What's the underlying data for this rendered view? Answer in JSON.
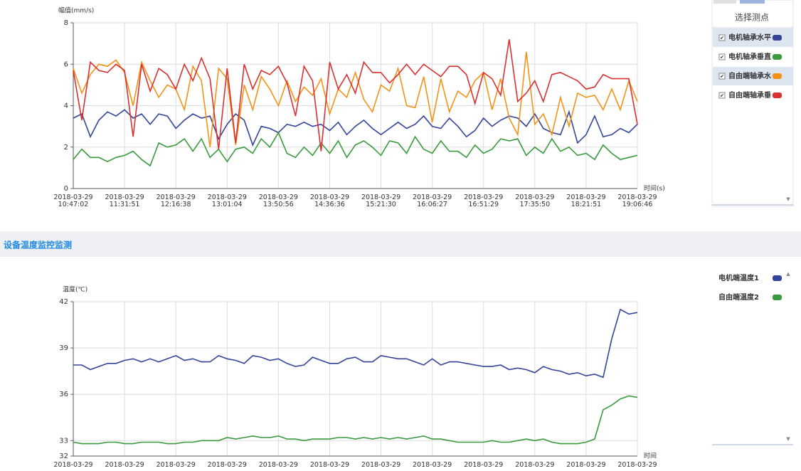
{
  "chart_data": [
    {
      "type": "line",
      "y_label": "幅值(mm/s)",
      "x_label": "时间(s)",
      "legend_title": "选择测点",
      "ylim": [
        0,
        8
      ],
      "yticks": [
        0,
        2,
        4,
        6,
        8
      ],
      "grid": true,
      "categories": [
        "2018-03-29\n10:47:02",
        null,
        null,
        null,
        null,
        null,
        "2018-03-29\n11:31:51",
        null,
        null,
        null,
        null,
        null,
        "2018-03-29\n12:16:38",
        null,
        null,
        null,
        null,
        null,
        "2018-03-29\n13:01:04",
        null,
        null,
        null,
        null,
        null,
        "2018-03-29\n13:50:56",
        null,
        null,
        null,
        null,
        null,
        "2018-03-29\n14:36:36",
        null,
        null,
        null,
        null,
        null,
        "2018-03-29\n15:21:30",
        null,
        null,
        null,
        null,
        null,
        "2018-03-29\n16:06:27",
        null,
        null,
        null,
        null,
        null,
        "2018-03-29\n16:51:29",
        null,
        null,
        null,
        null,
        null,
        "2018-03-29\n17:35:50",
        null,
        null,
        null,
        null,
        null,
        "2018-03-29\n18:21:51",
        null,
        null,
        null,
        null,
        null,
        "2018-03-29\n19:06:46"
      ],
      "series": [
        {
          "name": "电机轴承水平",
          "color": "#33449a",
          "values": [
            3.4,
            3.6,
            2.5,
            3.3,
            3.7,
            3.5,
            3.8,
            3.4,
            3.6,
            3.1,
            3.6,
            3.5,
            2.9,
            3.3,
            3.6,
            3.4,
            3.5,
            2.4,
            3.1,
            3.6,
            3.3,
            2.1,
            3.0,
            2.9,
            2.7,
            3.1,
            3.0,
            3.2,
            3.0,
            3.1,
            2.8,
            3.2,
            2.6,
            3.0,
            3.3,
            2.9,
            2.6,
            2.9,
            3.2,
            2.9,
            3.1,
            3.5,
            3.0,
            2.9,
            3.4,
            3.0,
            2.5,
            2.8,
            3.4,
            3.0,
            3.3,
            3.5,
            3.4,
            3.0,
            3.6,
            2.9,
            2.7,
            2.6,
            3.7,
            2.2,
            2.6,
            3.5,
            2.5,
            2.6,
            2.9,
            2.7,
            3.1
          ]
        },
        {
          "name": "电机轴承垂直",
          "color": "#3a9a3e",
          "values": [
            1.4,
            1.9,
            1.5,
            1.5,
            1.3,
            1.5,
            1.6,
            1.8,
            1.4,
            1.1,
            2.2,
            2.0,
            2.1,
            2.4,
            1.8,
            2.4,
            1.5,
            1.9,
            1.3,
            1.9,
            2.0,
            1.7,
            2.4,
            2.0,
            2.7,
            1.7,
            1.5,
            2.0,
            1.6,
            2.2,
            1.7,
            2.3,
            1.5,
            2.1,
            2.3,
            2.0,
            1.6,
            2.3,
            2.2,
            1.7,
            2.5,
            1.9,
            1.7,
            2.3,
            1.8,
            1.8,
            1.5,
            2.1,
            1.7,
            1.9,
            2.4,
            2.3,
            2.4,
            1.6,
            2.0,
            1.7,
            2.4,
            1.8,
            2.0,
            1.6,
            1.7,
            1.4,
            2.1,
            1.7,
            1.4,
            1.5,
            1.6
          ]
        },
        {
          "name": "自由端轴承水",
          "color": "#f39316",
          "values": [
            5.8,
            4.6,
            5.5,
            6.0,
            5.9,
            6.2,
            5.6,
            4.0,
            6.1,
            5.2,
            4.4,
            5.0,
            4.8,
            3.8,
            5.9,
            5.2,
            2.0,
            5.8,
            5.3,
            2.1,
            5.0,
            3.8,
            5.4,
            4.8,
            4.0,
            5.2,
            4.2,
            4.9,
            4.5,
            5.3,
            3.6,
            4.8,
            4.4,
            5.6,
            4.3,
            3.7,
            5.0,
            4.7,
            5.8,
            4.0,
            3.9,
            5.4,
            3.2,
            5.3,
            3.7,
            4.7,
            4.4,
            5.2,
            5.6,
            3.8,
            5.3,
            3.4,
            2.6,
            6.6,
            3.1,
            3.6,
            2.6,
            4.4,
            3.0,
            4.6,
            4.4,
            4.5,
            3.8,
            4.8,
            3.8,
            5.2,
            4.2
          ]
        },
        {
          "name": "自由端轴承垂",
          "color": "#d93030",
          "values": [
            5.7,
            3.3,
            6.1,
            5.7,
            5.6,
            6.0,
            5.7,
            2.5,
            6.0,
            4.7,
            5.8,
            5.5,
            4.8,
            6.0,
            5.2,
            6.3,
            5.3,
            1.9,
            5.8,
            2.2,
            6.0,
            4.8,
            5.7,
            5.5,
            5.9,
            5.1,
            3.5,
            5.9,
            5.2,
            1.8,
            6.1,
            4.8,
            5.5,
            4.6,
            6.1,
            5.6,
            5.6,
            5.1,
            5.5,
            6.0,
            5.5,
            6.0,
            5.7,
            5.4,
            5.9,
            5.9,
            5.5,
            4.1,
            5.6,
            5.3,
            4.5,
            7.2,
            4.2,
            4.6,
            5.2,
            4.2,
            5.5,
            5.6,
            5.4,
            5.2,
            4.8,
            4.9,
            5.5,
            5.3,
            5.3,
            5.3,
            3.1
          ]
        }
      ]
    },
    {
      "type": "line",
      "section_title": "设备温度监控监测",
      "y_label": "温度(℃)",
      "x_label": "时间",
      "ylim": [
        32,
        42
      ],
      "yticks": [
        32,
        33,
        36,
        39,
        42
      ],
      "grid": true,
      "categories": [
        "2018-03-29",
        null,
        null,
        null,
        null,
        null,
        "2018-03-29",
        null,
        null,
        null,
        null,
        null,
        "2018-03-29",
        null,
        null,
        null,
        null,
        null,
        "2018-03-29",
        null,
        null,
        null,
        null,
        null,
        "2018-03-29",
        null,
        null,
        null,
        null,
        null,
        "2018-03-29",
        null,
        null,
        null,
        null,
        null,
        "2018-03-29",
        null,
        null,
        null,
        null,
        null,
        "2018-03-29",
        null,
        null,
        null,
        null,
        null,
        "2018-03-29",
        null,
        null,
        null,
        null,
        null,
        "2018-03-29",
        null,
        null,
        null,
        null,
        null,
        "2018-03-29",
        null,
        null,
        null,
        null,
        null,
        "2018-03-29"
      ],
      "series": [
        {
          "name": "电机端温度1",
          "color": "#33449a",
          "values": [
            37.9,
            37.9,
            37.6,
            37.8,
            38.0,
            38.0,
            38.2,
            38.3,
            38.1,
            38.3,
            38.1,
            38.3,
            38.5,
            38.2,
            38.3,
            38.1,
            38.1,
            38.5,
            38.3,
            38.2,
            38.0,
            38.5,
            38.4,
            38.2,
            38.3,
            38.0,
            37.8,
            37.9,
            38.4,
            38.2,
            38.0,
            38.0,
            38.3,
            38.4,
            38.1,
            38.1,
            38.5,
            38.4,
            38.3,
            38.3,
            38.1,
            37.9,
            38.3,
            37.9,
            38.1,
            38.1,
            38.0,
            37.9,
            37.8,
            37.8,
            37.9,
            37.6,
            37.7,
            37.6,
            37.4,
            37.8,
            37.6,
            37.5,
            37.3,
            37.4,
            37.2,
            37.3,
            37.1,
            39.6,
            41.5,
            41.2,
            41.3
          ]
        },
        {
          "name": "自由端温度2",
          "color": "#3a9a3e",
          "values": [
            32.9,
            32.8,
            32.8,
            32.8,
            32.9,
            32.9,
            32.8,
            32.8,
            32.9,
            32.9,
            32.9,
            32.8,
            32.8,
            32.9,
            32.9,
            33.0,
            33.0,
            33.0,
            33.2,
            33.1,
            33.2,
            33.3,
            33.2,
            33.2,
            33.3,
            33.1,
            33.1,
            33.0,
            33.1,
            33.1,
            33.1,
            33.2,
            33.2,
            33.1,
            33.2,
            33.1,
            33.2,
            33.1,
            33.2,
            33.1,
            33.2,
            33.3,
            33.1,
            33.1,
            33.0,
            32.9,
            32.9,
            32.9,
            32.9,
            33.0,
            32.9,
            32.9,
            33.0,
            33.1,
            33.0,
            33.1,
            32.9,
            32.8,
            32.8,
            32.8,
            32.9,
            33.1,
            35.0,
            35.3,
            35.7,
            35.9,
            35.8
          ]
        }
      ]
    }
  ]
}
